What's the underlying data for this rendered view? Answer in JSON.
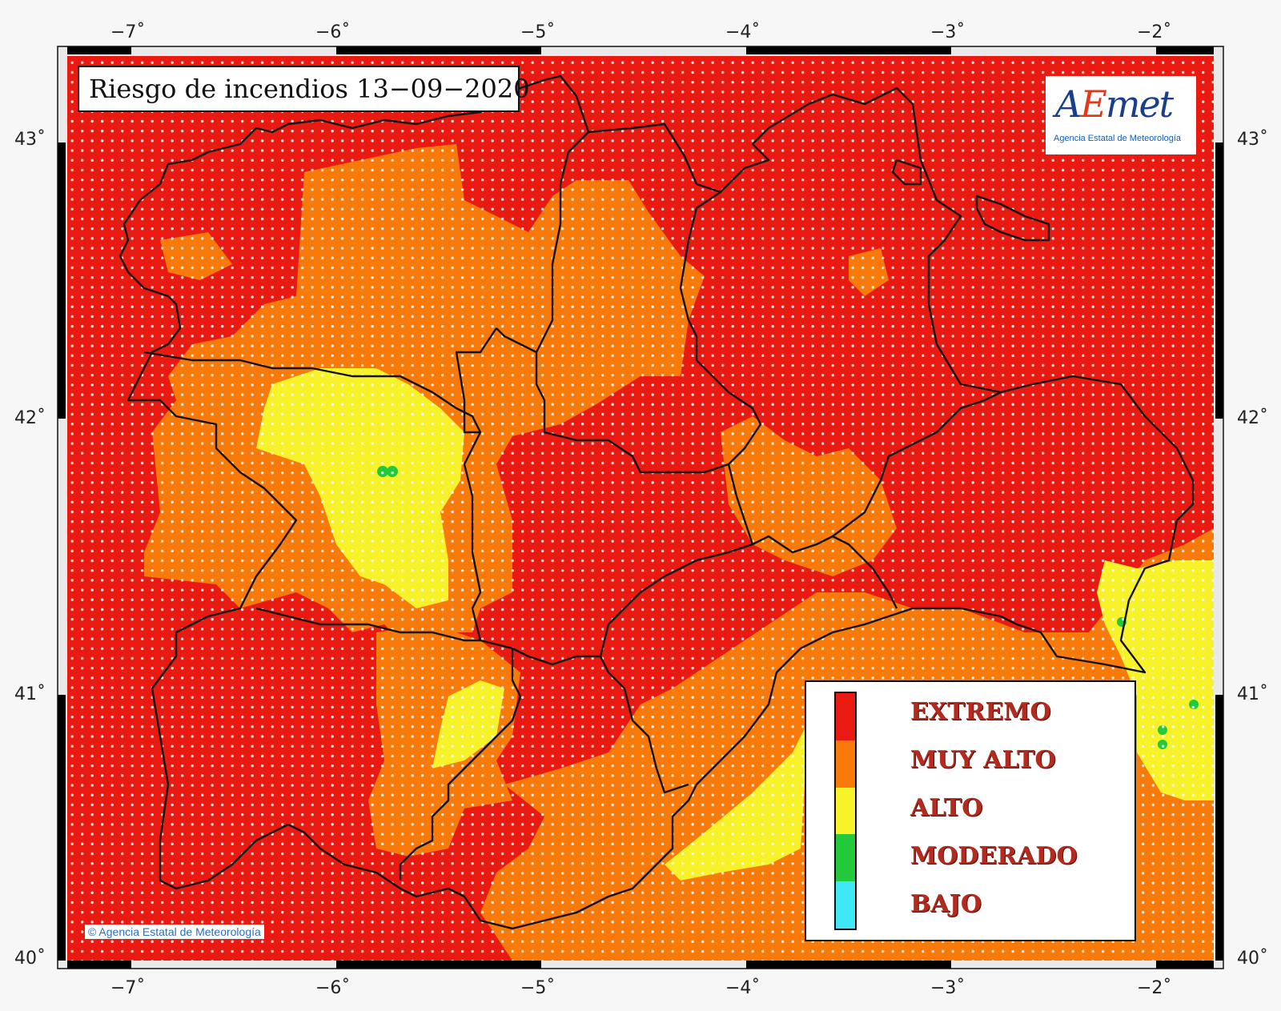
{
  "map": {
    "title": "Riesgo de incendios 13−09−2020",
    "credit": "© Agencia Estatal de Meteorología",
    "lon_ticks": [
      "−7˚",
      "−6˚",
      "−5˚",
      "−4˚",
      "−3˚",
      "−2˚"
    ],
    "lat_ticks": [
      "43˚",
      "42˚",
      "41˚",
      "40˚"
    ],
    "lon_range": [
      -7.35,
      -1.35
    ],
    "lat_range": [
      40.0,
      43.3
    ],
    "grid_dots": true
  },
  "logo": {
    "name_part1": "A",
    "name_part2": "E",
    "name_part3": "met",
    "subtitle": "Agencia Estatal de Meteorología"
  },
  "legend": {
    "items": [
      {
        "label": "EXTREMO",
        "color": "#e81a12"
      },
      {
        "label": "MUY ALTO",
        "color": "#f77a0a"
      },
      {
        "label": "ALTO",
        "color": "#f8f22a"
      },
      {
        "label": "MODERADO",
        "color": "#22c93a"
      },
      {
        "label": "BAJO",
        "color": "#3fe8f4"
      }
    ]
  },
  "colors": {
    "extremo": "#e81a12",
    "muy_alto": "#f77a0a",
    "alto": "#f8f22a",
    "moderado": "#22c93a",
    "bajo": "#3fe8f4"
  }
}
